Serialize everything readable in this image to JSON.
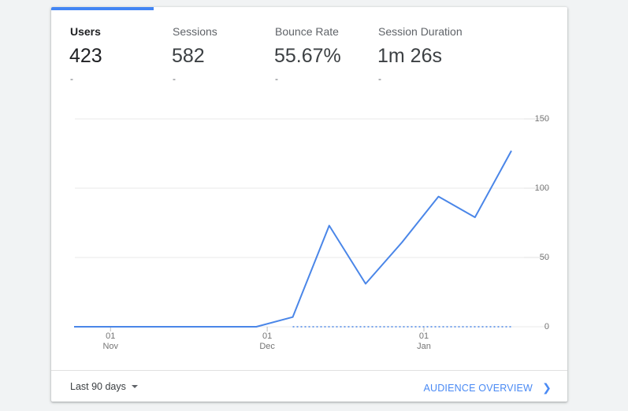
{
  "metrics": [
    {
      "label": "Users",
      "value": "423",
      "delta": "-",
      "active": true
    },
    {
      "label": "Sessions",
      "value": "582",
      "delta": "-",
      "active": false
    },
    {
      "label": "Bounce Rate",
      "value": "55.67%",
      "delta": "-",
      "active": false
    },
    {
      "label": "Session Duration",
      "value": "1m 26s",
      "delta": "-",
      "active": false
    }
  ],
  "chart_data": {
    "type": "line",
    "title": "",
    "xlabel": "",
    "ylabel": "",
    "ylim": [
      0,
      150
    ],
    "y_ticks": [
      0,
      50,
      100,
      150
    ],
    "y_axis_side": "right",
    "grid": true,
    "x_ticks": [
      {
        "day": "01",
        "month": "Nov",
        "week": 1
      },
      {
        "day": "01",
        "month": "Dec",
        "week": 5.3
      },
      {
        "day": "01",
        "month": "Jan",
        "week": 9.6
      }
    ],
    "series": [
      {
        "x": [
          0,
          1,
          2,
          3,
          4,
          5,
          6,
          7,
          8,
          9,
          10,
          11,
          12
        ],
        "values": [
          0,
          0,
          0,
          0,
          0,
          0,
          7,
          73,
          31,
          61,
          94,
          79,
          127
        ]
      }
    ],
    "comparison_baseline": 0
  },
  "footer": {
    "range_label": "Last 90 days",
    "link_label": "AUDIENCE OVERVIEW"
  },
  "colors": {
    "accent": "#4285f4",
    "line": "#4a86e8",
    "link": "#4a8af4"
  }
}
